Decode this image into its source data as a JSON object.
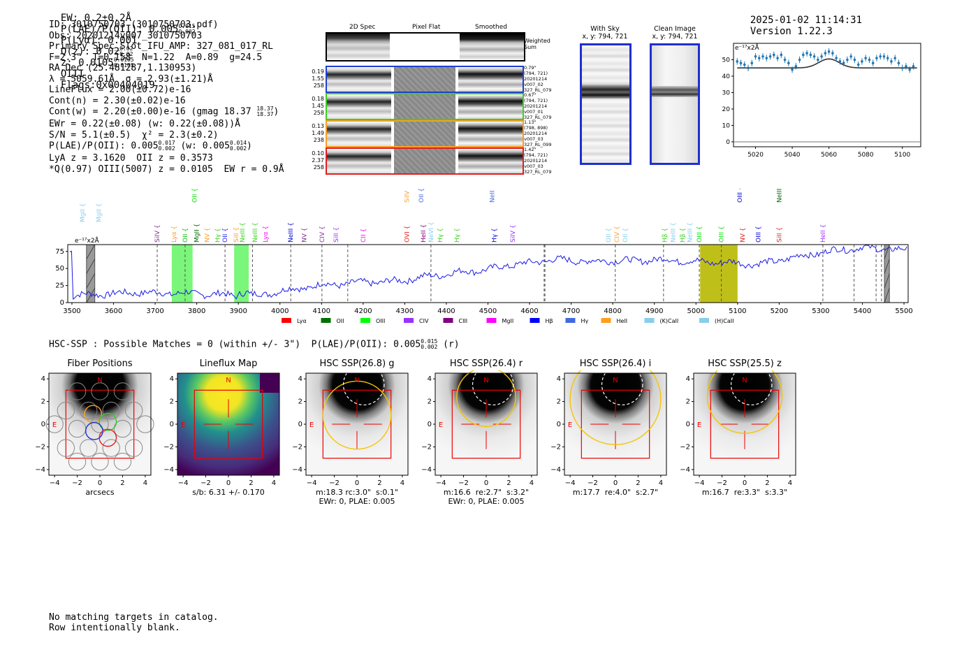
{
  "header": {
    "ew": "EW: 0.2±0.2Å",
    "plae_label": "P(LAE)/P(OII): 0.005",
    "plae_hi": "0.015",
    "plae_lo": "0.002",
    "plya": "P(Lyα): 0.001",
    "qz_label": "Q(z): 0.02",
    "qz_hi": "0.02",
    "qz_lo": "0.02",
    "z_label": "z: 0.0105",
    "z_hi": "0.0105",
    "z_lo": "0.0105",
    "line": "OIII",
    "flags": "Flags:0x00404019",
    "timestamp": "2025-01-02 11:14:31",
    "version": "Version 1.22.3"
  },
  "info": {
    "id": "ID: 3010750703 (3010750703.pdf)",
    "obs": "Obs: 20201214v007_3010750703",
    "primary": "Primary Spec_Slot_IFU_AMP: 327_081_017_RL",
    "fiber": "F=2.3\"  T=0.158  N=1.22  A=0.89  g=24.5",
    "radec": "RA,Dec (25.481287,1.130953)",
    "lambda": "λ = 5059.61Å  σ = 2.93(±1.21)Å",
    "lineflux": "LineFlux = 2.00(±0.72)e-16",
    "cont_n": "Cont(n) = 2.30(±0.02)e-16",
    "cont_w": "Cont(w) = 2.20(±0.00)e-16 (gmag 18.37",
    "cont_w_hi": "18.37",
    "cont_w_lo": "18.37",
    "ewr": "EWr = 0.22(±0.08) (w: 0.22(±0.08))Å",
    "sn": "S/N = 5.1(±0.5)  χ² = 2.3(±0.2)",
    "plae2": "P(LAE)/P(OII): 0.005",
    "plae2_hi": "0.017",
    "plae2_lo": "0.002",
    "plae2_w": "(w: 0.005",
    "plae2_w_hi": "0.014",
    "plae2_w_lo": "0.002",
    "lya": "LyA z = 3.1620  OII z = 0.3573",
    "q": "*Q(0.97) OIII(5007) z = 0.0105  EW r = 0.9Å"
  },
  "spec2d": {
    "col_titles": [
      "2D Spec",
      "Pixel Flat",
      "Smoothed"
    ],
    "weighted_sum": "Weighted Sum",
    "rows": [
      {
        "nums": [
          "0.19",
          "1.55",
          "258"
        ],
        "meta": [
          "0.79\"",
          "(794, 721)",
          "20201214",
          "v007_02",
          "327_RL_079"
        ],
        "color": "#1f3fd0"
      },
      {
        "nums": [
          "0.18",
          "1.45",
          "258"
        ],
        "meta": [
          "0.67\"",
          "(794, 721)",
          "20201214",
          "v007_01",
          "327_RL_079"
        ],
        "color": "#3cd01f"
      },
      {
        "nums": [
          "0.13",
          "1.49",
          "238"
        ],
        "meta": [
          "1.13\"",
          "(798, 898)",
          "20201214",
          "v007_03",
          "327_RL_099"
        ],
        "color": "#ff9d1f"
      },
      {
        "nums": [
          "0.10",
          "2.37",
          "258"
        ],
        "meta": [
          "1.42\"",
          "(794, 721)",
          "20201214",
          "v007_03",
          "327_RL_079"
        ],
        "color": "#e0201f"
      }
    ]
  },
  "sky": {
    "with_sky": "With Sky",
    "with_sky_xy": "x, y: 794, 721",
    "clean": "Clean Image",
    "clean_xy": "x, y: 794, 721"
  },
  "zoom_chart": {
    "type": "scatter",
    "ylabel": "e⁻¹⁷x2Å",
    "xlim": [
      5008,
      5110
    ],
    "ylim": [
      -3,
      60
    ],
    "xticks": [
      5020,
      5040,
      5060,
      5080,
      5100
    ],
    "yticks": [
      0,
      10,
      20,
      30,
      40,
      50
    ],
    "points": [
      [
        5010,
        49
      ],
      [
        5012,
        48
      ],
      [
        5014,
        47
      ],
      [
        5016,
        45
      ],
      [
        5018,
        48
      ],
      [
        5020,
        52
      ],
      [
        5022,
        51
      ],
      [
        5024,
        52
      ],
      [
        5026,
        51
      ],
      [
        5028,
        52
      ],
      [
        5030,
        53
      ],
      [
        5032,
        51
      ],
      [
        5034,
        53
      ],
      [
        5036,
        50
      ],
      [
        5038,
        48
      ],
      [
        5040,
        44
      ],
      [
        5042,
        46
      ],
      [
        5044,
        50
      ],
      [
        5046,
        53
      ],
      [
        5048,
        54
      ],
      [
        5050,
        53
      ],
      [
        5052,
        52
      ],
      [
        5054,
        50
      ],
      [
        5056,
        52
      ],
      [
        5058,
        54
      ],
      [
        5060,
        55
      ],
      [
        5062,
        54
      ],
      [
        5064,
        51
      ],
      [
        5066,
        49
      ],
      [
        5068,
        48
      ],
      [
        5070,
        50
      ],
      [
        5072,
        52
      ],
      [
        5074,
        50
      ],
      [
        5076,
        47
      ],
      [
        5078,
        49
      ],
      [
        5080,
        51
      ],
      [
        5082,
        50
      ],
      [
        5084,
        48
      ],
      [
        5086,
        51
      ],
      [
        5088,
        52
      ],
      [
        5090,
        52
      ],
      [
        5092,
        51
      ],
      [
        5094,
        49
      ],
      [
        5096,
        51
      ],
      [
        5098,
        48
      ],
      [
        5100,
        45
      ],
      [
        5102,
        46
      ],
      [
        5104,
        44
      ],
      [
        5106,
        46
      ]
    ],
    "model_center": 5060,
    "model_base": 45,
    "model_peak": 5.5,
    "model_sigma": 3
  },
  "spectrum_chart": {
    "type": "line",
    "ylabel": "e⁻¹⁷x2Å",
    "xlim": [
      3490,
      5510
    ],
    "ylim": [
      0,
      85
    ],
    "xticks": [
      3500,
      3600,
      3700,
      3800,
      3900,
      4000,
      4100,
      4200,
      4300,
      4400,
      4500,
      4600,
      4700,
      4800,
      4900,
      5000,
      5100,
      5200,
      5300,
      5400,
      5500
    ],
    "yticks": [
      0,
      25,
      50,
      75
    ],
    "anchors": [
      [
        3500,
        10
      ],
      [
        3550,
        12
      ],
      [
        3600,
        13
      ],
      [
        3650,
        15
      ],
      [
        3700,
        14
      ],
      [
        3750,
        14
      ],
      [
        3800,
        13
      ],
      [
        3850,
        12
      ],
      [
        3900,
        11
      ],
      [
        3950,
        11
      ],
      [
        4000,
        17
      ],
      [
        4050,
        21
      ],
      [
        4100,
        26
      ],
      [
        4150,
        27
      ],
      [
        4200,
        30
      ],
      [
        4250,
        30
      ],
      [
        4300,
        33
      ],
      [
        4350,
        38
      ],
      [
        4400,
        42
      ],
      [
        4450,
        46
      ],
      [
        4500,
        48
      ],
      [
        4550,
        55
      ],
      [
        4600,
        58
      ],
      [
        4650,
        63
      ],
      [
        4700,
        62
      ],
      [
        4750,
        60
      ],
      [
        4800,
        62
      ],
      [
        4850,
        61
      ],
      [
        4900,
        63
      ],
      [
        4950,
        62
      ],
      [
        5000,
        60
      ],
      [
        5050,
        59
      ],
      [
        5100,
        58
      ],
      [
        5150,
        56
      ],
      [
        5200,
        62
      ],
      [
        5250,
        68
      ],
      [
        5300,
        73
      ],
      [
        5350,
        78
      ],
      [
        5400,
        80
      ],
      [
        5450,
        79
      ],
      [
        5500,
        77
      ]
    ],
    "highlights": [
      {
        "x0": 3740,
        "x1": 3790,
        "color": "#6cf56c"
      },
      {
        "x0": 3890,
        "x1": 3925,
        "color": "#6cf56c"
      },
      {
        "x0": 5010,
        "x1": 5100,
        "color": "#b8b800"
      }
    ],
    "masked": [
      {
        "x0": 3535,
        "x1": 3555
      },
      {
        "x0": 5453,
        "x1": 5465
      }
    ],
    "dashed_lines": [
      3705,
      3772,
      3868,
      3934,
      4026,
      4101,
      4163,
      4363,
      4635,
      4637,
      4806,
      4922,
      5008,
      5061,
      5305,
      5380,
      5433,
      5446
    ],
    "line_labels": [
      {
        "x": 3525,
        "text": "MgII",
        "color": "#87ceeb",
        "row": 2
      },
      {
        "x": 3565,
        "text": "MgII",
        "color": "#87ceeb",
        "row": 2
      },
      {
        "x": 3705,
        "text": "SiIV",
        "color": "#7e2f8e",
        "row": 1
      },
      {
        "x": 3745,
        "text": "Lyα",
        "color": "#ff9d1f",
        "row": 1
      },
      {
        "x": 3772,
        "text": "OII",
        "color": "#00c000",
        "row": 1
      },
      {
        "x": 3795,
        "text": "OII",
        "color": "#00e000",
        "row": 3
      },
      {
        "x": 3800,
        "text": "MgII",
        "color": "#006400",
        "row": 1
      },
      {
        "x": 3825,
        "text": "NV",
        "color": "#ff9d1f",
        "row": 1
      },
      {
        "x": 3850,
        "text": "Hγ",
        "color": "#3cd01f",
        "row": 1
      },
      {
        "x": 3868,
        "text": "OII",
        "color": "#2020ff",
        "row": 1
      },
      {
        "x": 3895,
        "text": "SiII",
        "color": "#ff9d1f",
        "row": 1
      },
      {
        "x": 3910,
        "text": "NeIII",
        "color": "#3cd01f",
        "row": 1
      },
      {
        "x": 3940,
        "text": "NeIII",
        "color": "#3cd01f",
        "row": 1
      },
      {
        "x": 3965,
        "text": "Lyα",
        "color": "#ff00ff",
        "row": 1
      },
      {
        "x": 4026,
        "text": "NeIII",
        "color": "#0000cc",
        "row": 1
      },
      {
        "x": 4058,
        "text": "NV",
        "color": "#7e2f8e",
        "row": 1
      },
      {
        "x": 4101,
        "text": "CIV",
        "color": "#7e2f8e",
        "row": 1
      },
      {
        "x": 4135,
        "text": "SiII",
        "color": "#9b30ff",
        "row": 1
      },
      {
        "x": 4200,
        "text": "CII",
        "color": "#ff00ff",
        "row": 1
      },
      {
        "x": 4305,
        "text": "SiIV",
        "color": "#ff9d1f",
        "row": 3
      },
      {
        "x": 4305,
        "text": "OVI",
        "color": "#e0201f",
        "row": 1
      },
      {
        "x": 4340,
        "text": "OII",
        "color": "#4169e1",
        "row": 3
      },
      {
        "x": 4345,
        "text": "HeII",
        "color": "#800080",
        "row": 1
      },
      {
        "x": 4363,
        "text": "NeVI",
        "color": "#87ceeb",
        "row": 1
      },
      {
        "x": 4385,
        "text": "Hγ",
        "color": "#3cd01f",
        "row": 1
      },
      {
        "x": 4425,
        "text": "Hγ",
        "color": "#3cd01f",
        "row": 1
      },
      {
        "x": 4510,
        "text": "NeII",
        "color": "#4169e1",
        "row": 3
      },
      {
        "x": 4515,
        "text": "Hγ",
        "color": "#0000cc",
        "row": 1
      },
      {
        "x": 4560,
        "text": "SiIV",
        "color": "#9b30ff",
        "row": 1
      },
      {
        "x": 4790,
        "text": "OII",
        "color": "#87ceeb",
        "row": 1
      },
      {
        "x": 4810,
        "text": "CIV",
        "color": "#ff9d1f",
        "row": 1
      },
      {
        "x": 4830,
        "text": "OII",
        "color": "#87ceeb",
        "row": 1
      },
      {
        "x": 4925,
        "text": "Hβ",
        "color": "#3cd01f",
        "row": 1
      },
      {
        "x": 4945,
        "text": "NeIII",
        "color": "#87ceeb",
        "row": 1
      },
      {
        "x": 4968,
        "text": "Hβ",
        "color": "#3cd01f",
        "row": 1
      },
      {
        "x": 4985,
        "text": "NeIII",
        "color": "#87ceeb",
        "row": 1
      },
      {
        "x": 5008,
        "text": "OIII",
        "color": "#00e000",
        "row": 1
      },
      {
        "x": 5061,
        "text": "OIII",
        "color": "#00e000",
        "row": 1
      },
      {
        "x": 5105,
        "text": "OIII",
        "color": "#0000cc",
        "row": 3
      },
      {
        "x": 5112,
        "text": "NV",
        "color": "#e0201f",
        "row": 1
      },
      {
        "x": 5150,
        "text": "OIII",
        "color": "#0000cc",
        "row": 1
      },
      {
        "x": 5200,
        "text": "SiII",
        "color": "#e0201f",
        "row": 1
      },
      {
        "x": 5200,
        "text": "NeIII",
        "color": "#006400",
        "row": 3
      },
      {
        "x": 5305,
        "text": "HeII",
        "color": "#9b30ff",
        "row": 1
      }
    ],
    "legend": [
      {
        "label": "Lyα",
        "color": "#ff0000"
      },
      {
        "label": "OII",
        "color": "#007000"
      },
      {
        "label": "OIII",
        "color": "#00ff00"
      },
      {
        "label": "CIV",
        "color": "#9b30ff"
      },
      {
        "label": "CIII",
        "color": "#800080"
      },
      {
        "label": "MgII",
        "color": "#ff00ff"
      },
      {
        "label": "Hβ",
        "color": "#0000ff"
      },
      {
        "label": "Hγ",
        "color": "#4169e1"
      },
      {
        "label": "HeII",
        "color": "#ff9d1f"
      },
      {
        "label": "(K)CaII",
        "color": "#87ceeb"
      },
      {
        "label": "(H)CaII",
        "color": "#87ceeb"
      }
    ]
  },
  "hsc": {
    "title": "HSC-SSP : Possible Matches = 0 (within +/- 3\")  P(LAE)/P(OII): 0.005",
    "plae_hi": "0.015",
    "plae_lo": "0.002",
    "plae_suffix": "(r)",
    "cutouts": [
      {
        "title": "Fiber Positions",
        "foot": "arcsecs",
        "foot2": ""
      },
      {
        "title": "Lineflux Map",
        "foot": "s/b: 6.31 +/- 0.170",
        "foot2": ""
      },
      {
        "title": "HSC SSP(26.8) g",
        "foot": "m:18.3 rc:3.0\"  s:0.1\"",
        "foot2": "EWr: 0, PLAE: 0.005"
      },
      {
        "title": "HSC SSP(26.4) r",
        "foot": "m:16.6  re:2.7\"  s:3.2\"",
        "foot2": "EWr: 0, PLAE: 0.005"
      },
      {
        "title": "HSC SSP(26.4) i",
        "foot": "m:17.7  re:4.0\"  s:2.7\"",
        "foot2": ""
      },
      {
        "title": "HSC SSP(25.5) z",
        "foot": "m:16.7  re:3.3\"  s:3.3\"",
        "foot2": ""
      }
    ],
    "ticks": [
      "−4",
      "−2",
      "0",
      "2",
      "4"
    ],
    "yticks": [
      "4",
      "2",
      "0",
      "−2",
      "−4"
    ],
    "north": "N",
    "east": "E"
  },
  "catalog": {
    "line1": "No matching targets in catalog.",
    "line2": "Row intentionally blank."
  }
}
